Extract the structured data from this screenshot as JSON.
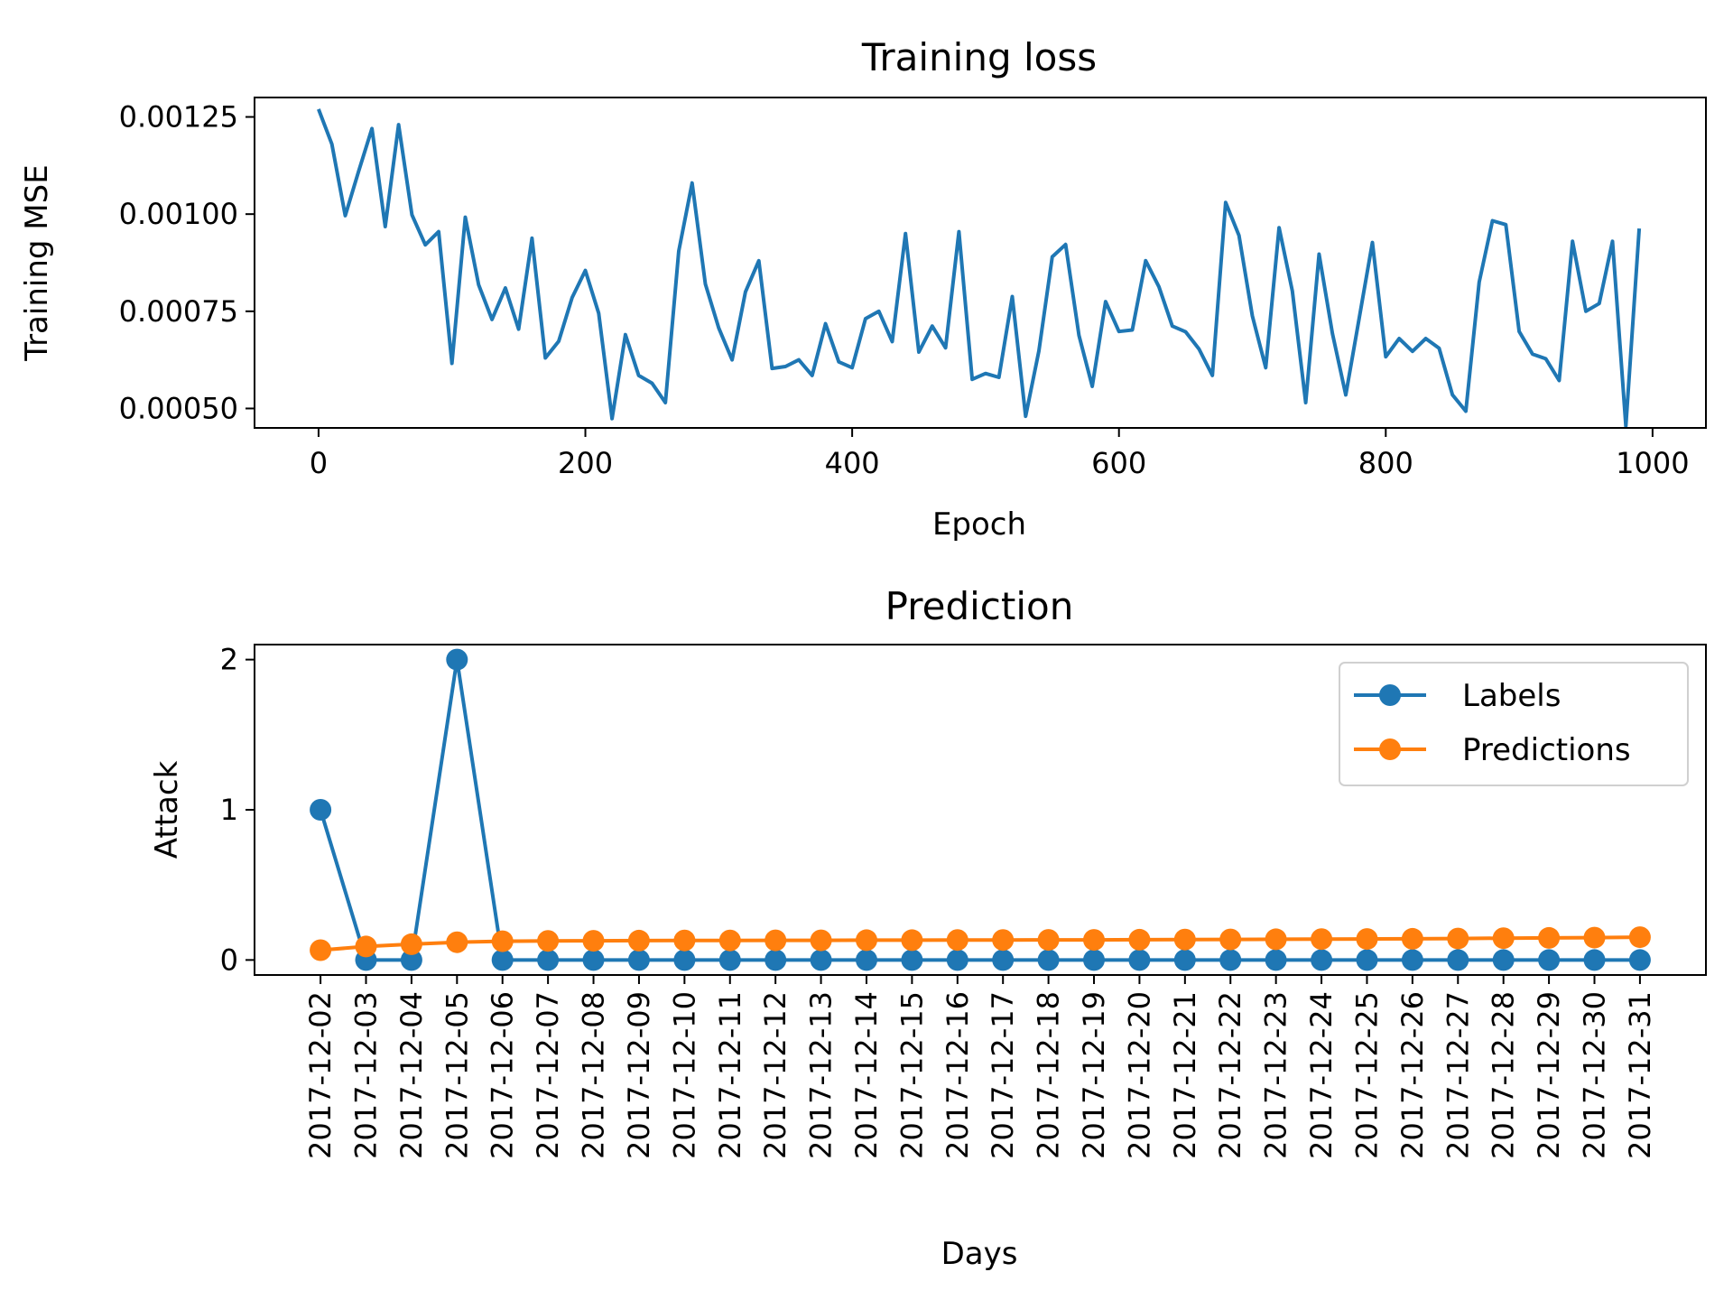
{
  "chart_data": [
    {
      "type": "line",
      "title": "Training loss",
      "xlabel": "Epoch",
      "ylabel": "Training MSE",
      "xlim": [
        -48,
        1040
      ],
      "ylim": [
        0.00045,
        0.0013
      ],
      "xticks": [
        0,
        200,
        400,
        600,
        800,
        1000
      ],
      "yticks": [
        0.0005,
        0.00075,
        0.001,
        0.00125
      ],
      "xtick_labels": [
        "0",
        "200",
        "400",
        "600",
        "800",
        "1000"
      ],
      "ytick_labels": [
        "0.00050",
        "0.00075",
        "0.00100",
        "0.00125"
      ],
      "grid": false,
      "series": [
        {
          "color": "#1f77b4",
          "x": [
            0,
            10,
            20,
            30,
            40,
            50,
            60,
            70,
            80,
            90,
            100,
            110,
            120,
            130,
            140,
            150,
            160,
            170,
            180,
            190,
            200,
            210,
            220,
            230,
            240,
            250,
            260,
            270,
            280,
            290,
            300,
            310,
            320,
            330,
            340,
            350,
            360,
            370,
            380,
            390,
            400,
            410,
            420,
            430,
            440,
            450,
            460,
            470,
            480,
            490,
            500,
            510,
            520,
            530,
            540,
            550,
            560,
            570,
            580,
            590,
            600,
            610,
            620,
            630,
            640,
            650,
            660,
            670,
            680,
            690,
            700,
            710,
            720,
            730,
            740,
            750,
            760,
            770,
            780,
            790,
            800,
            810,
            820,
            830,
            840,
            850,
            860,
            870,
            880,
            890,
            900,
            910,
            920,
            930,
            940,
            950,
            960,
            970,
            980,
            990
          ],
          "values": [
            0.00127,
            0.00118,
            0.000996,
            0.00111,
            0.00122,
            0.000968,
            0.00123,
            0.000998,
            0.000921,
            0.000955,
            0.000616,
            0.000992,
            0.000818,
            0.000729,
            0.00081,
            0.000704,
            0.000938,
            0.00063,
            0.000673,
            0.000785,
            0.000855,
            0.000745,
            0.000474,
            0.00069,
            0.000585,
            0.000565,
            0.000515,
            0.000905,
            0.00108,
            0.00082,
            0.000707,
            0.000625,
            0.0008,
            0.00088,
            0.000603,
            0.000608,
            0.000625,
            0.000585,
            0.000718,
            0.00062,
            0.000605,
            0.000731,
            0.00075,
            0.000672,
            0.00095,
            0.000645,
            0.000712,
            0.000656,
            0.000955,
            0.000575,
            0.00059,
            0.00058,
            0.000788,
            0.00048,
            0.000648,
            0.00089,
            0.000922,
            0.000688,
            0.000557,
            0.000775,
            0.000698,
            0.000702,
            0.00088,
            0.000813,
            0.000712,
            0.000697,
            0.000653,
            0.000585,
            0.00103,
            0.000945,
            0.000738,
            0.000605,
            0.000965,
            0.000802,
            0.000515,
            0.000897,
            0.000693,
            0.000535,
            0.00073,
            0.000927,
            0.000633,
            0.00068,
            0.000647,
            0.00068,
            0.000655,
            0.000535,
            0.000493,
            0.000825,
            0.000983,
            0.000973,
            0.000698,
            0.00064,
            0.000628,
            0.000572,
            0.00093,
            0.00075,
            0.00077,
            0.00093,
            0.000455,
            0.000963
          ]
        }
      ]
    },
    {
      "type": "line",
      "title": "Prediction",
      "xlabel": "Days",
      "ylabel": "Attack",
      "ylim": [
        -0.1,
        2.1
      ],
      "yticks": [
        0,
        1,
        2
      ],
      "ytick_labels": [
        "0",
        "1",
        "2"
      ],
      "grid": false,
      "legend_position": "top-right",
      "categories": [
        "2017-12-02",
        "2017-12-03",
        "2017-12-04",
        "2017-12-05",
        "2017-12-06",
        "2017-12-07",
        "2017-12-08",
        "2017-12-09",
        "2017-12-10",
        "2017-12-11",
        "2017-12-12",
        "2017-12-13",
        "2017-12-14",
        "2017-12-15",
        "2017-12-16",
        "2017-12-17",
        "2017-12-18",
        "2017-12-19",
        "2017-12-20",
        "2017-12-21",
        "2017-12-22",
        "2017-12-23",
        "2017-12-24",
        "2017-12-25",
        "2017-12-26",
        "2017-12-27",
        "2017-12-28",
        "2017-12-29",
        "2017-12-30",
        "2017-12-31"
      ],
      "series": [
        {
          "name": "Labels",
          "color": "#1f77b4",
          "marker": "circle",
          "values": [
            1,
            0,
            0,
            2,
            0,
            0,
            0,
            0,
            0,
            0,
            0,
            0,
            0,
            0,
            0,
            0,
            0,
            0,
            0,
            0,
            0,
            0,
            0,
            0,
            0,
            0,
            0,
            0,
            0,
            0
          ]
        },
        {
          "name": "Predictions",
          "color": "#ff7f0e",
          "marker": "circle",
          "values": [
            0.065,
            0.09,
            0.105,
            0.118,
            0.125,
            0.127,
            0.128,
            0.129,
            0.13,
            0.13,
            0.131,
            0.131,
            0.132,
            0.132,
            0.133,
            0.133,
            0.134,
            0.134,
            0.135,
            0.136,
            0.137,
            0.138,
            0.139,
            0.14,
            0.141,
            0.143,
            0.145,
            0.147,
            0.149,
            0.152
          ]
        }
      ]
    }
  ]
}
